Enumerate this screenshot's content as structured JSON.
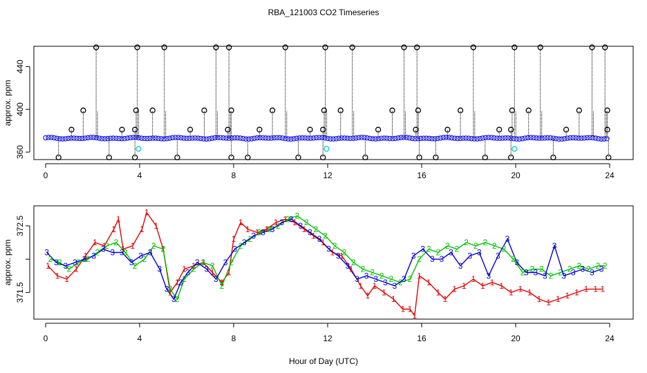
{
  "title": "RBA_121003  CO2 Timeseries",
  "xlabel": "Hour of Day (UTC)",
  "chart_data": [
    {
      "type": "scatter",
      "name": "top-panel",
      "ylabel": "approx. ppm",
      "xlim": [
        -0.5,
        25
      ],
      "ylim": [
        353,
        459
      ],
      "xticks": [
        0,
        4,
        8,
        12,
        16,
        20,
        24
      ],
      "yticks": [
        360,
        400,
        440
      ],
      "colors": {
        "outlier": "#000000",
        "baseline": "#1010e0",
        "low": "#00c8d0",
        "spike_line": "#000000"
      },
      "baseline_value": 373,
      "high_spikes": [
        {
          "x": 2.15,
          "y": 458
        },
        {
          "x": 3.9,
          "y": 458
        },
        {
          "x": 5.05,
          "y": 458
        },
        {
          "x": 7.25,
          "y": 458
        },
        {
          "x": 7.8,
          "y": 458
        },
        {
          "x": 10.2,
          "y": 458
        },
        {
          "x": 11.9,
          "y": 458
        },
        {
          "x": 13.05,
          "y": 458
        },
        {
          "x": 15.25,
          "y": 458
        },
        {
          "x": 15.8,
          "y": 458
        },
        {
          "x": 18.2,
          "y": 458
        },
        {
          "x": 19.95,
          "y": 458
        },
        {
          "x": 21.05,
          "y": 458
        },
        {
          "x": 23.25,
          "y": 458
        },
        {
          "x": 23.8,
          "y": 458
        }
      ],
      "mid_spikes": [
        {
          "x": 1.6,
          "y": 399
        },
        {
          "x": 3.85,
          "y": 399
        },
        {
          "x": 4.55,
          "y": 399
        },
        {
          "x": 6.75,
          "y": 399
        },
        {
          "x": 7.9,
          "y": 399
        },
        {
          "x": 9.65,
          "y": 399
        },
        {
          "x": 11.85,
          "y": 399
        },
        {
          "x": 12.55,
          "y": 399
        },
        {
          "x": 14.75,
          "y": 399
        },
        {
          "x": 15.85,
          "y": 399
        },
        {
          "x": 17.65,
          "y": 399
        },
        {
          "x": 19.85,
          "y": 399
        },
        {
          "x": 20.55,
          "y": 399
        },
        {
          "x": 22.7,
          "y": 399
        },
        {
          "x": 23.9,
          "y": 399
        }
      ],
      "small_spikes": [
        {
          "x": 1.1,
          "y": 381
        },
        {
          "x": 3.25,
          "y": 381
        },
        {
          "x": 3.8,
          "y": 381
        },
        {
          "x": 6.15,
          "y": 381
        },
        {
          "x": 7.75,
          "y": 381
        },
        {
          "x": 9.1,
          "y": 381
        },
        {
          "x": 11.25,
          "y": 381
        },
        {
          "x": 11.8,
          "y": 381
        },
        {
          "x": 14.15,
          "y": 381
        },
        {
          "x": 15.75,
          "y": 381
        },
        {
          "x": 17.1,
          "y": 381
        },
        {
          "x": 19.3,
          "y": 381
        },
        {
          "x": 19.8,
          "y": 381
        },
        {
          "x": 22.15,
          "y": 381
        },
        {
          "x": 23.9,
          "y": 381
        }
      ],
      "low_dips": [
        {
          "x": 0.55,
          "y": 355
        },
        {
          "x": 2.7,
          "y": 355
        },
        {
          "x": 3.8,
          "y": 355
        },
        {
          "x": 5.6,
          "y": 355
        },
        {
          "x": 7.9,
          "y": 355
        },
        {
          "x": 8.6,
          "y": 355
        },
        {
          "x": 10.75,
          "y": 355
        },
        {
          "x": 11.8,
          "y": 355
        },
        {
          "x": 13.6,
          "y": 355
        },
        {
          "x": 15.9,
          "y": 355
        },
        {
          "x": 16.6,
          "y": 355
        },
        {
          "x": 18.7,
          "y": 355
        },
        {
          "x": 19.8,
          "y": 355
        },
        {
          "x": 21.6,
          "y": 355
        },
        {
          "x": 23.95,
          "y": 355
        }
      ],
      "cyan_points": [
        {
          "x": 3.95,
          "y": 363
        },
        {
          "x": 11.95,
          "y": 363
        },
        {
          "x": 19.95,
          "y": 363
        }
      ]
    },
    {
      "type": "line",
      "name": "bottom-panel",
      "ylabel": "approx. ppm",
      "xlim": [
        -0.5,
        25
      ],
      "ylim": [
        371.1,
        372.8
      ],
      "xticks": [
        0,
        4,
        8,
        12,
        16,
        20,
        24
      ],
      "yticks": [
        371.5,
        372.5
      ],
      "ytick_labels": [
        "371.5",
        "372.5"
      ],
      "series": [
        {
          "name": "1",
          "color": "#e00000",
          "marker": "1",
          "x": [
            0.1,
            0.5,
            0.9,
            1.3,
            1.7,
            2.1,
            2.5,
            2.9,
            3.1,
            3.3,
            3.7,
            4.1,
            4.3,
            4.7,
            5.0,
            5.3,
            5.6,
            5.9,
            6.3,
            6.7,
            7.1,
            7.5,
            7.8,
            8.0,
            8.3,
            8.6,
            9.0,
            9.4,
            9.8,
            10.2,
            10.6,
            11.0,
            11.4,
            11.8,
            12.2,
            12.6,
            13.0,
            13.4,
            13.7,
            14.0,
            14.4,
            14.8,
            15.2,
            15.5,
            15.7,
            15.9,
            16.3,
            16.7,
            17.0,
            17.4,
            17.8,
            18.2,
            18.6,
            19.0,
            19.4,
            19.8,
            20.2,
            20.6,
            21.0,
            21.4,
            21.8,
            22.2,
            22.6,
            23.0,
            23.4,
            23.7
          ],
          "values": [
            371.9,
            371.75,
            371.7,
            371.85,
            372.05,
            372.25,
            372.2,
            372.45,
            372.6,
            372.15,
            372.2,
            372.45,
            372.7,
            372.5,
            372.15,
            371.5,
            371.65,
            371.85,
            371.9,
            371.95,
            371.8,
            371.65,
            371.8,
            372.3,
            372.55,
            372.45,
            372.4,
            372.45,
            372.55,
            372.6,
            372.55,
            372.45,
            372.35,
            372.25,
            372.1,
            372.05,
            371.85,
            371.6,
            371.45,
            371.6,
            371.5,
            371.4,
            371.25,
            371.25,
            371.15,
            371.75,
            371.65,
            371.5,
            371.4,
            371.55,
            371.6,
            371.7,
            371.6,
            371.65,
            371.6,
            371.5,
            371.55,
            371.5,
            371.4,
            371.35,
            371.4,
            371.45,
            371.5,
            371.55,
            371.55,
            371.55
          ]
        },
        {
          "name": "2",
          "color": "#00c000",
          "marker": "2",
          "x": [
            0.2,
            0.6,
            1.0,
            1.4,
            1.8,
            2.2,
            2.6,
            3.0,
            3.4,
            3.8,
            4.2,
            4.6,
            5.0,
            5.3,
            5.6,
            5.9,
            6.3,
            6.7,
            7.1,
            7.5,
            7.9,
            8.3,
            8.7,
            9.1,
            9.5,
            9.9,
            10.3,
            10.7,
            11.1,
            11.5,
            11.9,
            12.3,
            12.7,
            13.1,
            13.5,
            13.9,
            14.3,
            14.7,
            15.1,
            15.5,
            15.9,
            16.3,
            16.7,
            17.1,
            17.5,
            17.9,
            18.3,
            18.7,
            19.1,
            19.5,
            19.9,
            20.3,
            20.7,
            21.1,
            21.5,
            21.9,
            22.3,
            22.7,
            23.1,
            23.5,
            23.8
          ],
          "values": [
            372.0,
            371.95,
            371.85,
            371.95,
            372.0,
            372.1,
            372.2,
            372.25,
            372.1,
            371.9,
            372.0,
            372.2,
            372.15,
            371.55,
            371.4,
            371.7,
            371.85,
            371.95,
            371.9,
            371.6,
            371.95,
            372.2,
            372.3,
            372.4,
            372.45,
            372.5,
            372.6,
            372.65,
            372.55,
            372.45,
            372.35,
            372.2,
            372.1,
            371.95,
            371.85,
            371.8,
            371.75,
            371.7,
            371.65,
            371.7,
            372.0,
            372.15,
            372.1,
            372.2,
            372.15,
            372.25,
            372.2,
            372.25,
            372.2,
            372.15,
            372.0,
            371.8,
            371.85,
            371.85,
            371.75,
            371.8,
            371.85,
            371.9,
            371.85,
            371.9,
            371.9
          ]
        },
        {
          "name": "3",
          "color": "#0000d0",
          "marker": "3",
          "x": [
            0.05,
            0.45,
            0.85,
            1.25,
            1.65,
            2.05,
            2.45,
            2.85,
            3.25,
            3.65,
            4.05,
            4.45,
            4.85,
            5.15,
            5.45,
            5.75,
            6.05,
            6.45,
            6.85,
            7.25,
            7.65,
            8.05,
            8.45,
            8.85,
            9.25,
            9.65,
            10.05,
            10.45,
            10.85,
            11.25,
            11.65,
            12.05,
            12.45,
            12.85,
            13.25,
            13.65,
            14.05,
            14.45,
            14.85,
            15.25,
            15.65,
            16.05,
            16.45,
            16.85,
            17.25,
            17.65,
            18.05,
            18.45,
            18.85,
            19.25,
            19.65,
            20.05,
            20.45,
            20.85,
            21.25,
            21.65,
            22.05,
            22.45,
            22.85,
            23.25,
            23.65
          ],
          "values": [
            372.1,
            371.95,
            371.9,
            371.95,
            372.0,
            372.05,
            372.15,
            372.1,
            372.1,
            371.95,
            372.05,
            372.1,
            371.85,
            371.55,
            371.4,
            371.65,
            371.8,
            371.95,
            371.85,
            371.7,
            371.95,
            372.15,
            372.25,
            372.35,
            372.4,
            372.45,
            372.55,
            372.6,
            372.5,
            372.4,
            372.3,
            372.15,
            372.05,
            371.9,
            371.7,
            371.75,
            371.7,
            371.65,
            371.6,
            371.7,
            372.05,
            372.15,
            372.0,
            372.0,
            372.1,
            371.9,
            372.05,
            372.1,
            371.75,
            372.05,
            372.3,
            371.95,
            371.8,
            371.8,
            371.75,
            372.2,
            371.75,
            371.8,
            371.85,
            371.8,
            371.85
          ]
        }
      ]
    }
  ]
}
